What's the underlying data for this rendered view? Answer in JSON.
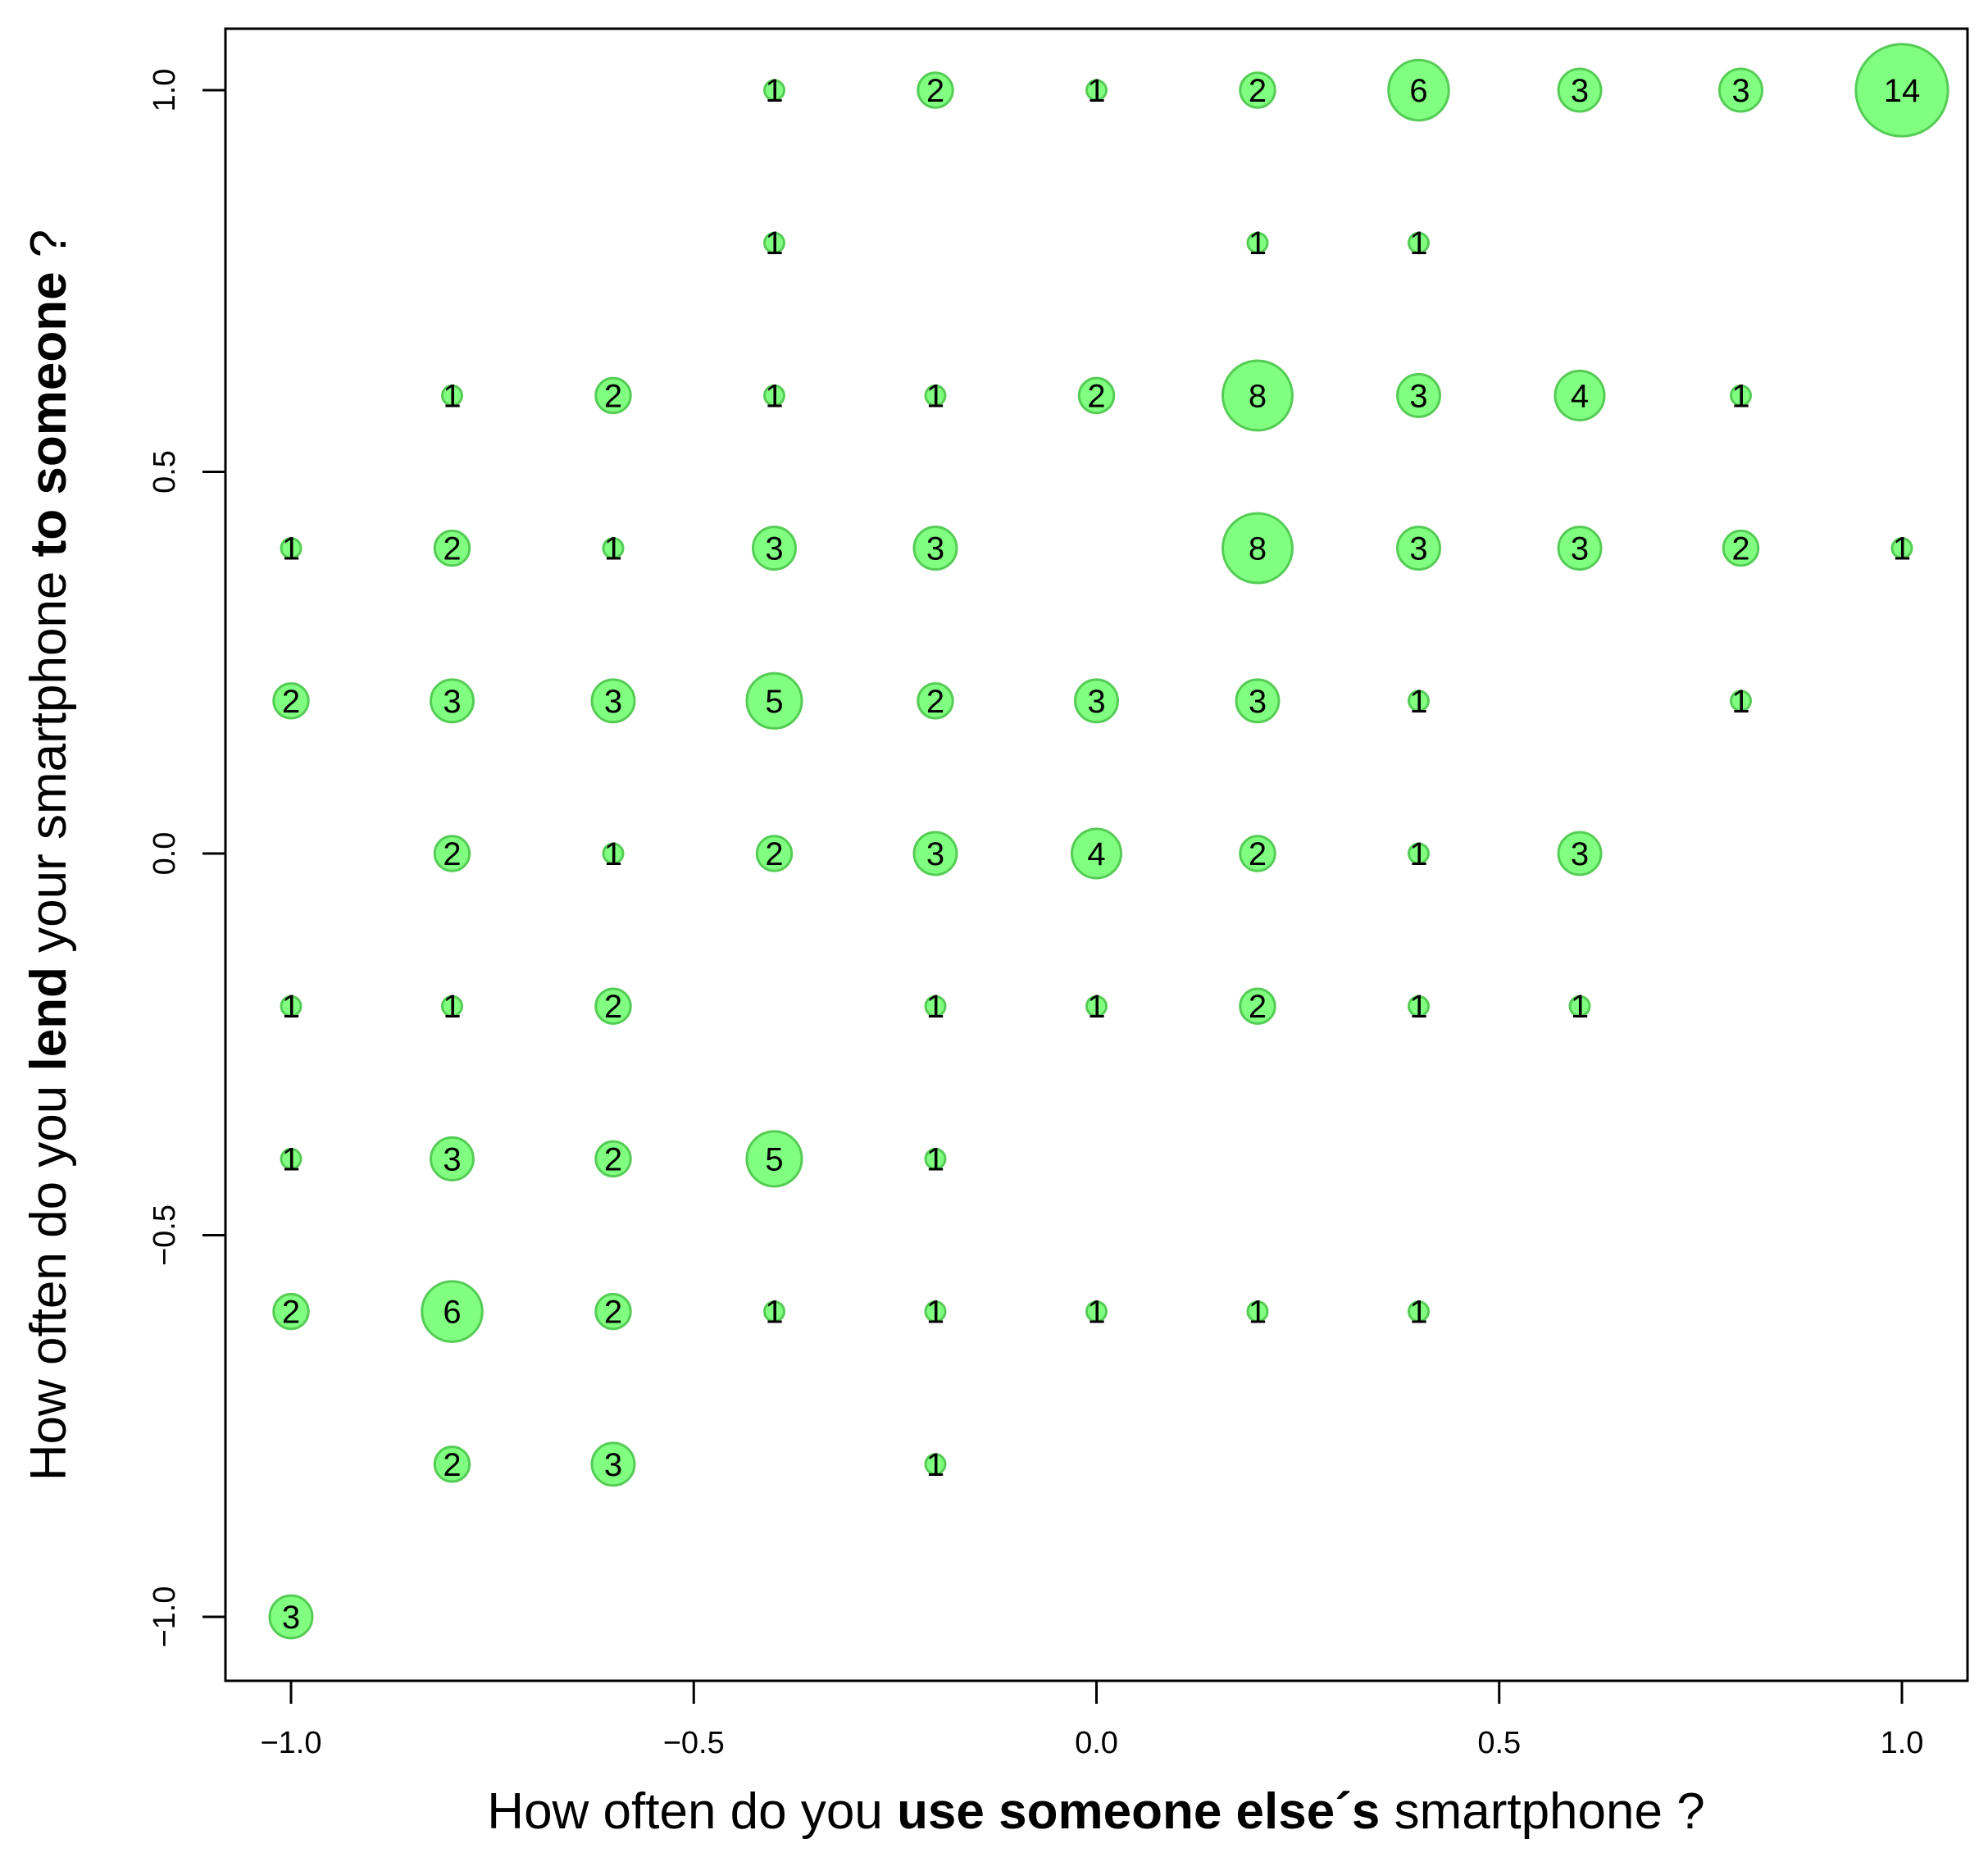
{
  "chart_data": {
    "type": "scatter",
    "subtype": "bubble",
    "title": "",
    "xlabel": {
      "parts": [
        {
          "text": "How often do you ",
          "bold": false
        },
        {
          "text": "use someone else´s",
          "bold": true
        },
        {
          "text": " smartphone ?",
          "bold": false
        }
      ]
    },
    "ylabel": {
      "parts": [
        {
          "text": "How often do you ",
          "bold": false
        },
        {
          "text": "lend",
          "bold": true
        },
        {
          "text": " your smartphone ",
          "bold": false
        },
        {
          "text": "to someone",
          "bold": true
        },
        {
          "text": " ?",
          "bold": false
        }
      ]
    },
    "xlim": [
      -1.08,
      1.08
    ],
    "ylim": [
      -1.08,
      1.08
    ],
    "xticks": [
      -1.0,
      -0.5,
      0.0,
      0.5,
      1.0
    ],
    "yticks": [
      -1.0,
      -0.5,
      0.0,
      0.5,
      1.0
    ],
    "xtick_labels": [
      "−1.0",
      "−0.5",
      "0.0",
      "0.5",
      "1.0"
    ],
    "ytick_labels": [
      "−1.0",
      "−0.5",
      "0.0",
      "0.5",
      "1.0"
    ],
    "bubble_color": "#80ff80",
    "bubble_edge_color": "#55cc55",
    "points": [
      {
        "x": -0.4,
        "y": 1.0,
        "count": 1
      },
      {
        "x": -0.2,
        "y": 1.0,
        "count": 2
      },
      {
        "x": 0.0,
        "y": 1.0,
        "count": 1
      },
      {
        "x": 0.2,
        "y": 1.0,
        "count": 2
      },
      {
        "x": 0.4,
        "y": 1.0,
        "count": 6
      },
      {
        "x": 0.6,
        "y": 1.0,
        "count": 3
      },
      {
        "x": 0.8,
        "y": 1.0,
        "count": 3
      },
      {
        "x": 1.0,
        "y": 1.0,
        "count": 14
      },
      {
        "x": -0.4,
        "y": 0.8,
        "count": 1
      },
      {
        "x": 0.2,
        "y": 0.8,
        "count": 1
      },
      {
        "x": 0.4,
        "y": 0.8,
        "count": 1
      },
      {
        "x": -0.8,
        "y": 0.6,
        "count": 1
      },
      {
        "x": -0.6,
        "y": 0.6,
        "count": 2
      },
      {
        "x": -0.4,
        "y": 0.6,
        "count": 1
      },
      {
        "x": -0.2,
        "y": 0.6,
        "count": 1
      },
      {
        "x": 0.0,
        "y": 0.6,
        "count": 2
      },
      {
        "x": 0.2,
        "y": 0.6,
        "count": 8
      },
      {
        "x": 0.4,
        "y": 0.6,
        "count": 3
      },
      {
        "x": 0.6,
        "y": 0.6,
        "count": 4
      },
      {
        "x": 0.8,
        "y": 0.6,
        "count": 1
      },
      {
        "x": -1.0,
        "y": 0.4,
        "count": 1
      },
      {
        "x": -0.8,
        "y": 0.4,
        "count": 2
      },
      {
        "x": -0.6,
        "y": 0.4,
        "count": 1
      },
      {
        "x": -0.4,
        "y": 0.4,
        "count": 3
      },
      {
        "x": -0.2,
        "y": 0.4,
        "count": 3
      },
      {
        "x": 0.2,
        "y": 0.4,
        "count": 8
      },
      {
        "x": 0.4,
        "y": 0.4,
        "count": 3
      },
      {
        "x": 0.6,
        "y": 0.4,
        "count": 3
      },
      {
        "x": 0.8,
        "y": 0.4,
        "count": 2
      },
      {
        "x": 1.0,
        "y": 0.4,
        "count": 1
      },
      {
        "x": -1.0,
        "y": 0.2,
        "count": 2
      },
      {
        "x": -0.8,
        "y": 0.2,
        "count": 3
      },
      {
        "x": -0.6,
        "y": 0.2,
        "count": 3
      },
      {
        "x": -0.4,
        "y": 0.2,
        "count": 5
      },
      {
        "x": -0.2,
        "y": 0.2,
        "count": 2
      },
      {
        "x": 0.0,
        "y": 0.2,
        "count": 3
      },
      {
        "x": 0.2,
        "y": 0.2,
        "count": 3
      },
      {
        "x": 0.4,
        "y": 0.2,
        "count": 1
      },
      {
        "x": 0.8,
        "y": 0.2,
        "count": 1
      },
      {
        "x": -0.8,
        "y": 0.0,
        "count": 2
      },
      {
        "x": -0.6,
        "y": 0.0,
        "count": 1
      },
      {
        "x": -0.4,
        "y": 0.0,
        "count": 2
      },
      {
        "x": -0.2,
        "y": 0.0,
        "count": 3
      },
      {
        "x": 0.0,
        "y": 0.0,
        "count": 4
      },
      {
        "x": 0.2,
        "y": 0.0,
        "count": 2
      },
      {
        "x": 0.4,
        "y": 0.0,
        "count": 1
      },
      {
        "x": 0.6,
        "y": 0.0,
        "count": 3
      },
      {
        "x": -1.0,
        "y": -0.2,
        "count": 1
      },
      {
        "x": -0.8,
        "y": -0.2,
        "count": 1
      },
      {
        "x": -0.6,
        "y": -0.2,
        "count": 2
      },
      {
        "x": -0.2,
        "y": -0.2,
        "count": 1
      },
      {
        "x": 0.0,
        "y": -0.2,
        "count": 1
      },
      {
        "x": 0.2,
        "y": -0.2,
        "count": 2
      },
      {
        "x": 0.4,
        "y": -0.2,
        "count": 1
      },
      {
        "x": 0.6,
        "y": -0.2,
        "count": 1
      },
      {
        "x": -1.0,
        "y": -0.4,
        "count": 1
      },
      {
        "x": -0.8,
        "y": -0.4,
        "count": 3
      },
      {
        "x": -0.6,
        "y": -0.4,
        "count": 2
      },
      {
        "x": -0.4,
        "y": -0.4,
        "count": 5
      },
      {
        "x": -0.2,
        "y": -0.4,
        "count": 1
      },
      {
        "x": -1.0,
        "y": -0.6,
        "count": 2
      },
      {
        "x": -0.8,
        "y": -0.6,
        "count": 6
      },
      {
        "x": -0.6,
        "y": -0.6,
        "count": 2
      },
      {
        "x": -0.4,
        "y": -0.6,
        "count": 1
      },
      {
        "x": -0.2,
        "y": -0.6,
        "count": 1
      },
      {
        "x": 0.0,
        "y": -0.6,
        "count": 1
      },
      {
        "x": 0.2,
        "y": -0.6,
        "count": 1
      },
      {
        "x": 0.4,
        "y": -0.6,
        "count": 1
      },
      {
        "x": -0.8,
        "y": -0.8,
        "count": 2
      },
      {
        "x": -0.6,
        "y": -0.8,
        "count": 3
      },
      {
        "x": -0.2,
        "y": -0.8,
        "count": 1
      },
      {
        "x": -1.0,
        "y": -1.0,
        "count": 3
      }
    ]
  }
}
